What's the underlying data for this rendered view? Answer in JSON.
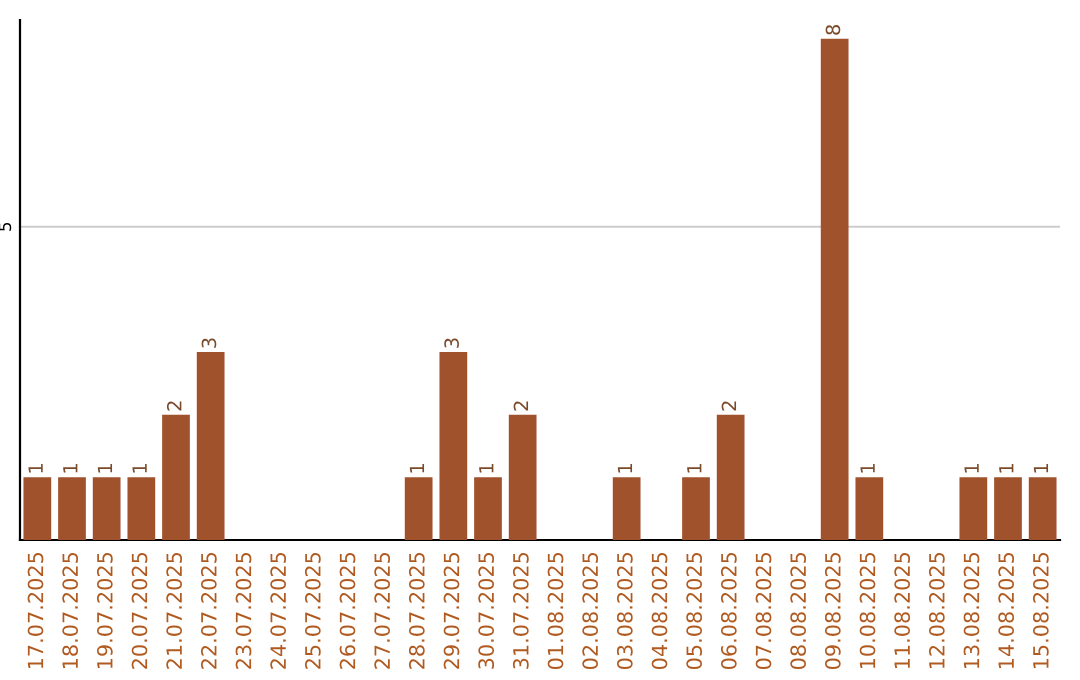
{
  "chart_data": {
    "type": "bar",
    "categories": [
      "17.07.2025",
      "18.07.2025",
      "19.07.2025",
      "20.07.2025",
      "21.07.2025",
      "22.07.2025",
      "23.07.2025",
      "24.07.2025",
      "25.07.2025",
      "26.07.2025",
      "27.07.2025",
      "28.07.2025",
      "29.07.2025",
      "30.07.2025",
      "31.07.2025",
      "01.08.2025",
      "02.08.2025",
      "03.08.2025",
      "04.08.2025",
      "05.08.2025",
      "06.08.2025",
      "07.08.2025",
      "08.08.2025",
      "09.08.2025",
      "10.08.2025",
      "11.08.2025",
      "12.08.2025",
      "13.08.2025",
      "14.08.2025",
      "15.08.2025"
    ],
    "values": [
      1,
      1,
      1,
      1,
      2,
      3,
      0,
      0,
      0,
      0,
      0,
      1,
      3,
      1,
      2,
      0,
      0,
      1,
      0,
      1,
      2,
      0,
      0,
      8,
      1,
      0,
      0,
      1,
      1,
      1
    ],
    "value_labels": [
      "1",
      "1",
      "1",
      "1",
      "2",
      "3",
      null,
      null,
      null,
      null,
      null,
      "1",
      "3",
      "1",
      "2",
      null,
      null,
      "1",
      null,
      "1",
      "2",
      null,
      null,
      "8",
      "1",
      null,
      null,
      "1",
      "1",
      "1"
    ],
    "color": "#a0522d",
    "ylim": [
      0,
      8.3
    ],
    "yticks": [
      5
    ],
    "grid": "y"
  }
}
